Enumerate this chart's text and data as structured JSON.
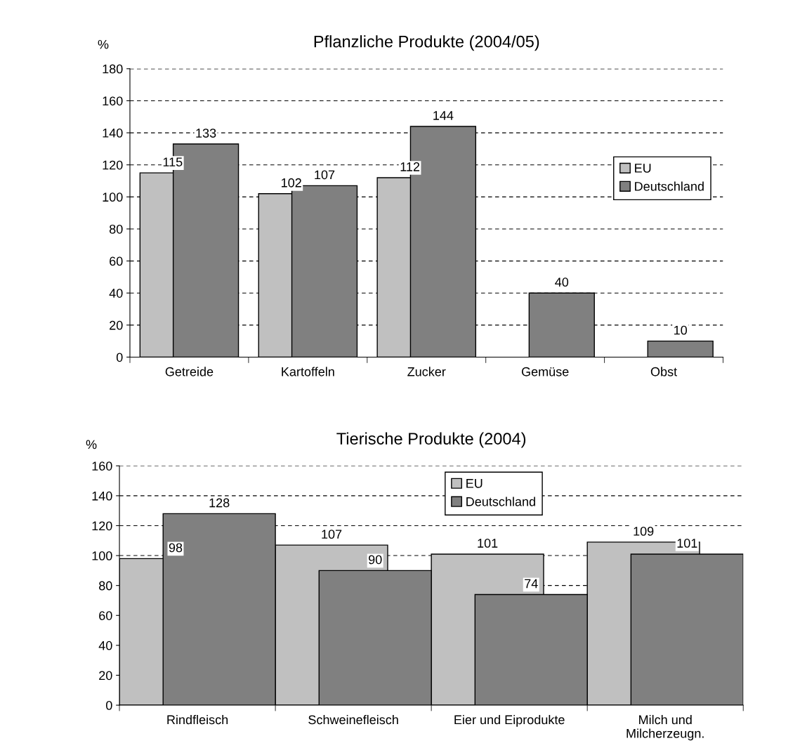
{
  "chart_data": [
    {
      "type": "bar",
      "title": "Pflanzliche Produkte (2004/05)",
      "ylabel": "%",
      "categories": [
        "Getreide",
        "Kartoffeln",
        "Zucker",
        "Gemüse",
        "Obst"
      ],
      "series": [
        {
          "name": "EU",
          "color": "#c0c0c0",
          "values": [
            115,
            102,
            112,
            null,
            null
          ]
        },
        {
          "name": "Deutschland",
          "color": "#808080",
          "values": [
            133,
            107,
            144,
            40,
            10
          ]
        }
      ],
      "ylim": [
        0,
        180
      ],
      "yticks": [
        0,
        20,
        40,
        60,
        80,
        100,
        120,
        140,
        160,
        180
      ],
      "grid": "y",
      "legend": "right",
      "data_labels": true
    },
    {
      "type": "bar",
      "title": "Tierische Produkte (2004)",
      "ylabel": "%",
      "categories": [
        "Rindfleisch",
        "Schweinefleisch",
        "Eier und Eiprodukte",
        "Milch und\nMilcherzeugn."
      ],
      "series": [
        {
          "name": "EU",
          "color": "#c0c0c0",
          "values": [
            98,
            107,
            101,
            109
          ]
        },
        {
          "name": "Deutschland",
          "color": "#808080",
          "values": [
            128,
            90,
            74,
            101
          ]
        }
      ],
      "ylim": [
        0,
        160
      ],
      "yticks": [
        0,
        20,
        40,
        60,
        80,
        100,
        120,
        140,
        160
      ],
      "grid": "y",
      "legend": "top",
      "data_labels": true
    }
  ]
}
